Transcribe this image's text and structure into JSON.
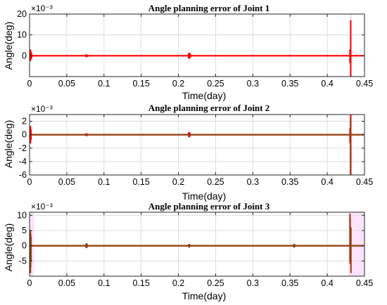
{
  "chart_data": [
    {
      "type": "line",
      "title": "Angle planning error of Joint 1",
      "xlabel": "Time(day)",
      "ylabel": "Angle(deg)",
      "y_exponent_label": "×10⁻³",
      "xlim": [
        0,
        0.45
      ],
      "ylim": [
        -10,
        20
      ],
      "x_ticks": [
        0,
        0.05,
        0.1,
        0.15,
        0.2,
        0.25,
        0.3,
        0.35,
        0.4,
        0.45
      ],
      "x_tick_labels": [
        "0",
        "0.05",
        "0.1",
        "0.15",
        "0.2",
        "0.25",
        "0.3",
        "0.35",
        "0.4",
        "0.45"
      ],
      "y_ticks": [
        0,
        10,
        20
      ],
      "y_tick_labels": [
        "0",
        "10",
        "20"
      ],
      "grid": true,
      "shading": [
        [
          0.43,
          0.433
        ]
      ],
      "series": [
        {
          "color": "#ff0000",
          "baseline": 0,
          "spikes": [
            {
              "x": 0.0013,
              "min": -2.5,
              "max": 3.0
            },
            {
              "x": 0.002,
              "min": -1.5,
              "max": 2.0
            },
            {
              "x": 0.0765,
              "min": -0.5,
              "max": 0.5
            },
            {
              "x": 0.2145,
              "min": -1.5,
              "max": 1.5
            },
            {
              "x": 0.2155,
              "min": -1.0,
              "max": 1.0
            },
            {
              "x": 0.4305,
              "min": -3.5,
              "max": 3.0
            },
            {
              "x": 0.4315,
              "min": -10.0,
              "max": 17.0
            }
          ]
        }
      ]
    },
    {
      "type": "line",
      "title": "Angle planning error of Joint 2",
      "xlabel": "Time(day)",
      "ylabel": "Angle(deg)",
      "y_exponent_label": "×10⁻³",
      "xlim": [
        0,
        0.45
      ],
      "ylim": [
        -6,
        3
      ],
      "x_ticks": [
        0,
        0.05,
        0.1,
        0.15,
        0.2,
        0.25,
        0.3,
        0.35,
        0.4,
        0.45
      ],
      "x_tick_labels": [
        "0",
        "0.05",
        "0.1",
        "0.15",
        "0.2",
        "0.25",
        "0.3",
        "0.35",
        "0.4",
        "0.45"
      ],
      "y_ticks": [
        -6,
        -4,
        -2,
        0,
        2
      ],
      "y_tick_labels": [
        "-6",
        "-4",
        "-2",
        "0",
        "2"
      ],
      "grid": true,
      "shading": [
        [
          0.43,
          0.434
        ]
      ],
      "series": [
        {
          "color": "#ff0000",
          "baseline": 0,
          "spikes": [
            {
              "x": 0.0013,
              "min": -1.3,
              "max": 1.3
            },
            {
              "x": 0.002,
              "min": -0.8,
              "max": 0.8
            },
            {
              "x": 0.0765,
              "min": -0.2,
              "max": 0.2
            },
            {
              "x": 0.2145,
              "min": -0.4,
              "max": 0.4
            },
            {
              "x": 0.4305,
              "min": -1.2,
              "max": 1.0
            },
            {
              "x": 0.4315,
              "min": -6.0,
              "max": 3.0
            }
          ]
        },
        {
          "color": "#8b4513",
          "baseline": 0,
          "spikes": [
            {
              "x": 0.4312,
              "min": -6.0,
              "max": 2.5
            }
          ]
        }
      ]
    },
    {
      "type": "line",
      "title": "Angle planning error of Joint 3",
      "xlabel": "Time(day)",
      "ylabel": "Angle(deg)",
      "y_exponent_label": "×10⁻³",
      "xlim": [
        0,
        0.45
      ],
      "ylim": [
        -10,
        11
      ],
      "x_ticks": [
        0,
        0.05,
        0.1,
        0.15,
        0.2,
        0.25,
        0.3,
        0.35,
        0.4,
        0.45
      ],
      "x_tick_labels": [
        "0",
        "0.05",
        "0.1",
        "0.15",
        "0.2",
        "0.25",
        "0.3",
        "0.35",
        "0.4",
        "0.45"
      ],
      "y_ticks": [
        -5,
        0,
        5,
        10
      ],
      "y_tick_labels": [
        "-5",
        "0",
        "5",
        "10"
      ],
      "grid": true,
      "shading": [
        [
          0,
          0.006
        ],
        [
          0.428,
          0.45
        ]
      ],
      "series": [
        {
          "color": "#ff0000",
          "baseline": 0,
          "spikes": [
            {
              "x": 0.0015,
              "min": -7.0,
              "max": 4.0
            },
            {
              "x": 0.4308,
              "min": -6.0,
              "max": 9.0
            }
          ]
        },
        {
          "color": "#8b4513",
          "baseline": 0,
          "spikes": [
            {
              "x": 0.0012,
              "min": -9.0,
              "max": 5.0
            },
            {
              "x": 0.002,
              "min": -5.0,
              "max": 3.0
            },
            {
              "x": 0.0765,
              "min": -0.8,
              "max": 0.8
            },
            {
              "x": 0.2145,
              "min": -0.6,
              "max": 0.6
            },
            {
              "x": 0.3555,
              "min": -0.6,
              "max": 0.6
            },
            {
              "x": 0.4305,
              "min": -5.0,
              "max": 10.5
            },
            {
              "x": 0.4318,
              "min": -9.0,
              "max": 6.0
            }
          ]
        }
      ]
    }
  ]
}
